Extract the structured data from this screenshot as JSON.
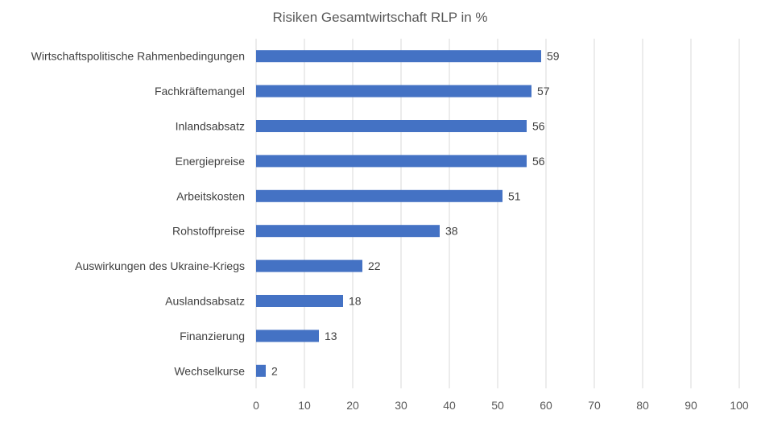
{
  "chart_data": {
    "type": "bar",
    "orientation": "horizontal",
    "title": "Risiken Gesamtwirtschaft RLP in %",
    "categories": [
      "Wirtschaftspolitische Rahmenbedingungen",
      "Fachkräftemangel",
      "Inlandsabsatz",
      "Energiepreise",
      "Arbeitskosten",
      "Rohstoffpreise",
      "Auswirkungen des Ukraine-Kriegs",
      "Auslandsabsatz",
      "Finanzierung",
      "Wechselkurse"
    ],
    "values": [
      59,
      57,
      56,
      56,
      51,
      38,
      22,
      18,
      13,
      2
    ],
    "xlim": [
      0,
      100
    ],
    "x_ticks": [
      0,
      10,
      20,
      30,
      40,
      50,
      60,
      70,
      80,
      90,
      100
    ],
    "grid": true,
    "legend": "none",
    "bar_color": "#4472C4"
  }
}
